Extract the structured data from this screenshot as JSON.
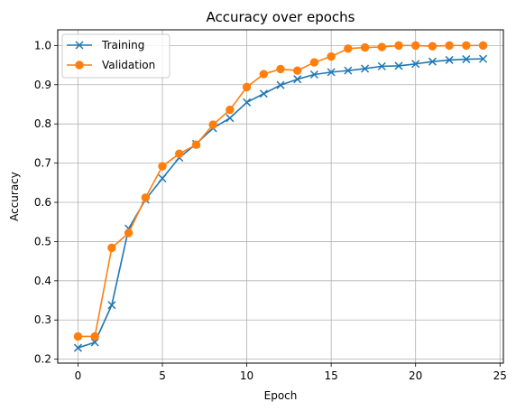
{
  "chart_data": {
    "type": "line",
    "title": "Accuracy over epochs",
    "xlabel": "Epoch",
    "ylabel": "Accuracy",
    "xlim": [
      -1.2,
      25.2
    ],
    "ylim": [
      0.19,
      1.04
    ],
    "xticks": [
      0,
      5,
      10,
      15,
      20,
      25
    ],
    "yticks": [
      0.2,
      0.3,
      0.4,
      0.5,
      0.6,
      0.7,
      0.8,
      0.9,
      1.0
    ],
    "xtick_labels": [
      "0",
      "5",
      "10",
      "15",
      "20",
      "25"
    ],
    "ytick_labels": [
      "0.2",
      "0.3",
      "0.4",
      "0.5",
      "0.6",
      "0.7",
      "0.8",
      "0.9",
      "1.0"
    ],
    "grid": true,
    "legend_position": "top-left",
    "x": [
      0,
      1,
      2,
      3,
      4,
      5,
      6,
      7,
      8,
      9,
      10,
      11,
      12,
      13,
      14,
      15,
      16,
      17,
      18,
      19,
      20,
      21,
      22,
      23,
      24
    ],
    "series": [
      {
        "name": "Training",
        "color": "#1f77b4",
        "marker": "x",
        "values": [
          0.229,
          0.243,
          0.338,
          0.533,
          0.607,
          0.661,
          0.714,
          0.749,
          0.789,
          0.815,
          0.855,
          0.877,
          0.899,
          0.914,
          0.926,
          0.932,
          0.936,
          0.941,
          0.947,
          0.948,
          0.953,
          0.959,
          0.963,
          0.965,
          0.966
        ]
      },
      {
        "name": "Validation",
        "color": "#ff7f0e",
        "marker": "o",
        "values": [
          0.258,
          0.258,
          0.484,
          0.522,
          0.612,
          0.692,
          0.724,
          0.747,
          0.798,
          0.836,
          0.894,
          0.927,
          0.94,
          0.936,
          0.957,
          0.972,
          0.992,
          0.995,
          0.996,
          1.0,
          1.0,
          0.998,
          1.0,
          1.0,
          1.0
        ]
      }
    ]
  }
}
